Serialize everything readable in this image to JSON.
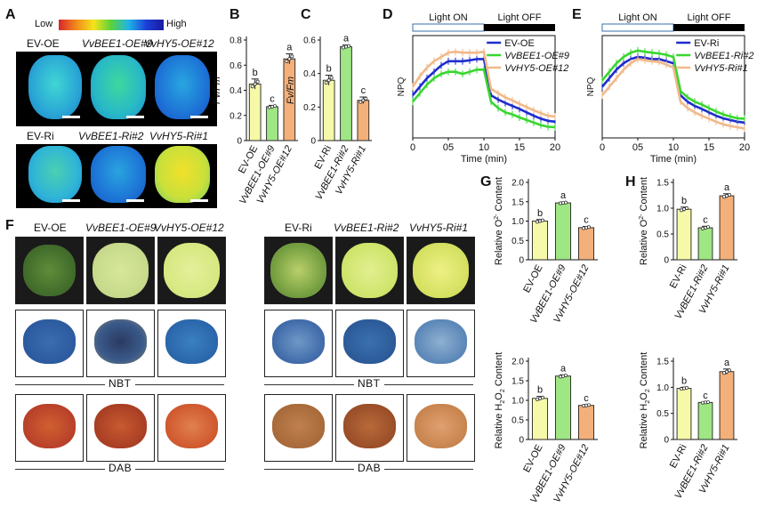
{
  "panels": {
    "A": "A",
    "B": "B",
    "C": "C",
    "D": "D",
    "E": "E",
    "F": "F",
    "G": "G",
    "H": "H"
  },
  "panelA": {
    "colorbar_low": "Low",
    "colorbar_high": "High",
    "oe_labels": [
      "EV-OE",
      "VvBEE1-OE#9",
      "VvHY5-OE#12"
    ],
    "ri_labels": [
      "EV-Ri",
      "VvBEE1-Ri#2",
      "VvHY5-Ri#1"
    ]
  },
  "panelF": {
    "oe_labels": [
      "EV-OE",
      "VvBEE1-OE#9",
      "VvHY5-OE#12"
    ],
    "ri_labels": [
      "EV-Ri",
      "VvBEE1-Ri#2",
      "VvHY5-Ri#1"
    ],
    "nbt": "NBT",
    "dab": "DAB"
  },
  "colors": {
    "ev": "#f5f9a8",
    "bee1_oe": "#9fe684",
    "hy5": "#f4b07a",
    "ev_line": "#1f2ccf",
    "bee1_line": "#39d630",
    "hy5_line": "#f2b98a",
    "error": "#222"
  },
  "chart_data": [
    {
      "id": "B",
      "type": "bar",
      "ylabel": "Fv/Fm",
      "ylim": [
        0,
        0.8
      ],
      "yticks": [
        "0",
        "0.2",
        "0.4",
        "0.6",
        "0.8"
      ],
      "categories": [
        "EV-OE",
        "VvBEE1-OE#9",
        "VvHY5-OE#12"
      ],
      "values": [
        0.45,
        0.27,
        0.65
      ],
      "errors": [
        0.04,
        0.01,
        0.04
      ],
      "letters": [
        "b",
        "c",
        "a"
      ]
    },
    {
      "id": "C",
      "type": "bar",
      "ylabel": "Fv/Fm",
      "ylim": [
        0,
        0.6
      ],
      "yticks": [
        "0",
        "0.2",
        "0.4",
        "0.6"
      ],
      "categories": [
        "EV-Ri",
        "VvBEE1-Ri#2",
        "VvHY5-Ri#1"
      ],
      "values": [
        0.36,
        0.56,
        0.24
      ],
      "errors": [
        0.03,
        0.01,
        0.02
      ],
      "letters": [
        "b",
        "a",
        "c"
      ]
    },
    {
      "id": "D",
      "type": "line",
      "ylabel": "NPQ",
      "xlabel": "Time (min)",
      "xlim": [
        0,
        20
      ],
      "ylim": [
        0,
        2.4
      ],
      "xticks": [
        "0",
        "05",
        "10",
        "15",
        "20"
      ],
      "light_on": "Light ON",
      "light_off": "Light OFF",
      "x": [
        0,
        1,
        2,
        3,
        4,
        5,
        6,
        7,
        8,
        9,
        10,
        11,
        12,
        13,
        14,
        15,
        16,
        17,
        18,
        19,
        20
      ],
      "series": [
        {
          "name": "EV-OE",
          "values": [
            1.0,
            1.2,
            1.4,
            1.55,
            1.7,
            1.8,
            1.8,
            1.8,
            1.82,
            1.85,
            1.85,
            1.0,
            0.9,
            0.82,
            0.75,
            0.68,
            0.6,
            0.52,
            0.45,
            0.4,
            0.38
          ]
        },
        {
          "name": "VvBEE1-OE#9",
          "values": [
            0.85,
            1.05,
            1.25,
            1.4,
            1.5,
            1.55,
            1.55,
            1.5,
            1.55,
            1.6,
            1.6,
            0.85,
            0.7,
            0.6,
            0.55,
            0.48,
            0.42,
            0.36,
            0.3,
            0.26,
            0.25
          ]
        },
        {
          "name": "VvHY5-OE#12",
          "values": [
            1.2,
            1.45,
            1.65,
            1.8,
            1.9,
            2.0,
            2.02,
            2.0,
            2.0,
            2.0,
            2.02,
            1.15,
            1.05,
            0.95,
            0.88,
            0.8,
            0.72,
            0.65,
            0.58,
            0.52,
            0.5
          ]
        }
      ]
    },
    {
      "id": "E",
      "type": "line",
      "ylabel": "NPQ",
      "xlabel": "Time (min)",
      "xlim": [
        0,
        20
      ],
      "ylim": [
        0,
        2.4
      ],
      "xticks": [
        "0",
        "05",
        "10",
        "15",
        "20"
      ],
      "light_on": "Light ON",
      "light_off": "Light OFF",
      "x": [
        0,
        1,
        2,
        3,
        4,
        5,
        6,
        7,
        8,
        9,
        10,
        11,
        12,
        13,
        14,
        15,
        16,
        17,
        18,
        19,
        20
      ],
      "series": [
        {
          "name": "EV-Ri",
          "values": [
            1.2,
            1.4,
            1.6,
            1.75,
            1.85,
            1.9,
            1.88,
            1.85,
            1.85,
            1.8,
            1.75,
            1.0,
            0.85,
            0.75,
            0.68,
            0.6,
            0.52,
            0.46,
            0.42,
            0.38,
            0.36
          ]
        },
        {
          "name": "VvBEE1-Ri#2",
          "values": [
            1.35,
            1.55,
            1.75,
            1.9,
            2.0,
            2.05,
            2.02,
            2.0,
            1.98,
            1.95,
            1.9,
            1.1,
            0.95,
            0.85,
            0.78,
            0.7,
            0.62,
            0.55,
            0.5,
            0.46,
            0.45
          ]
        },
        {
          "name": "VvHY5-Ri#1",
          "values": [
            1.0,
            1.2,
            1.4,
            1.6,
            1.75,
            1.85,
            1.82,
            1.8,
            1.78,
            1.72,
            1.65,
            0.85,
            0.7,
            0.6,
            0.52,
            0.45,
            0.38,
            0.32,
            0.28,
            0.25,
            0.22
          ]
        }
      ]
    },
    {
      "id": "G-top",
      "type": "bar",
      "ylabel": "Relative O2- Content",
      "ylim": [
        0,
        2.0
      ],
      "yticks": [
        "0",
        "0.5",
        "1.0",
        "1.5",
        "2.0"
      ],
      "categories": [
        "EV-OE",
        "VvBEE1-OE#9",
        "VvHY5-OE#12"
      ],
      "values": [
        1.0,
        1.47,
        0.83
      ],
      "errors": [
        0.04,
        0.02,
        0.03
      ],
      "letters": [
        "b",
        "a",
        "c"
      ]
    },
    {
      "id": "H-top",
      "type": "bar",
      "ylabel": "Relative O2- Content",
      "ylim": [
        0,
        1.5
      ],
      "yticks": [
        "0",
        "0.5",
        "1.0",
        "1.5"
      ],
      "categories": [
        "EV-Ri",
        "VvBEE1-Ri#2",
        "VvHY5-Ri#1"
      ],
      "values": [
        0.98,
        0.62,
        1.24
      ],
      "errors": [
        0.04,
        0.03,
        0.04
      ],
      "letters": [
        "b",
        "c",
        "a"
      ]
    },
    {
      "id": "G-bottom",
      "type": "bar",
      "ylabel": "Relative H2O2 Content",
      "ylim": [
        0,
        2.0
      ],
      "yticks": [
        "0",
        "0.5",
        "1.0",
        "1.5",
        "2.0"
      ],
      "categories": [
        "EV-OE",
        "VvBEE1-OE#9",
        "VvHY5-OE#12"
      ],
      "values": [
        1.05,
        1.62,
        0.87
      ],
      "errors": [
        0.05,
        0.03,
        0.02
      ],
      "letters": [
        "b",
        "a",
        "c"
      ]
    },
    {
      "id": "H-bottom",
      "type": "bar",
      "ylabel": "Relative H2O2 Content",
      "ylim": [
        0,
        1.5
      ],
      "yticks": [
        "0",
        "0.5",
        "1.0",
        "1.5"
      ],
      "categories": [
        "EV-Ri",
        "VvBEE1-Ri#2",
        "VvHY5-Ri#1"
      ],
      "values": [
        0.98,
        0.71,
        1.3
      ],
      "errors": [
        0.02,
        0.01,
        0.05
      ],
      "letters": [
        "b",
        "c",
        "a"
      ]
    }
  ]
}
